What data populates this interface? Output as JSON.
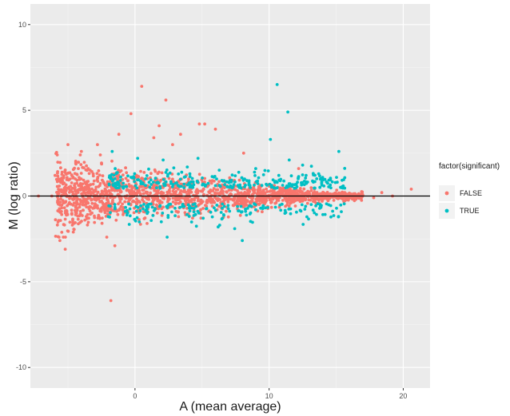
{
  "chart_data": {
    "type": "scatter",
    "title": "",
    "xlabel": "A (mean average)",
    "ylabel": "M (log ratio)",
    "xlim": [
      -7.8,
      22
    ],
    "ylim": [
      -11.2,
      11.2
    ],
    "x_ticks": [
      0,
      10,
      20
    ],
    "y_ticks": [
      -10,
      -5,
      0,
      5,
      10
    ],
    "x_tick_labels": [
      "0",
      "10",
      "20"
    ],
    "y_tick_labels": [
      "-10",
      "-5",
      "0",
      "5",
      "10"
    ],
    "grid": true,
    "hline": 0,
    "legend": {
      "title": "factor(significant)",
      "placement": "right",
      "entries": [
        {
          "label": "FALSE",
          "color": "#F8766D"
        },
        {
          "label": "TRUE",
          "color": "#00BFC4"
        }
      ]
    },
    "series": [
      {
        "name": "FALSE",
        "color": "#F8766D",
        "points": [
          [
            0.5,
            6.4
          ],
          [
            1.4,
            3.4
          ],
          [
            2.3,
            5.6
          ],
          [
            -0.3,
            4.8
          ],
          [
            1.8,
            4.1
          ],
          [
            4.8,
            4.2
          ],
          [
            5.2,
            4.2
          ],
          [
            3.4,
            3.6
          ],
          [
            -1.2,
            3.6
          ],
          [
            6.0,
            3.9
          ],
          [
            -1.8,
            -6.1
          ],
          [
            -1.5,
            -2.9
          ],
          [
            -2.1,
            -2.4
          ],
          [
            -5.2,
            -3.1
          ],
          [
            -5.6,
            -2.6
          ],
          [
            -7.2,
            0.0
          ],
          [
            -6.2,
            0.0
          ],
          [
            -5.5,
            0.0
          ],
          [
            20.6,
            0.4
          ],
          [
            19.2,
            0.0
          ],
          [
            18.4,
            0.2
          ],
          [
            17.8,
            -0.1
          ],
          [
            -5.0,
            3.0
          ],
          [
            -4.0,
            2.6
          ],
          [
            -2.8,
            3.0
          ],
          [
            2.8,
            3.0
          ],
          [
            8.1,
            2.5
          ],
          [
            13.3,
            1.3
          ],
          [
            12.2,
            1.6
          ],
          [
            -4.6,
            -2.1
          ]
        ]
      },
      {
        "name": "TRUE",
        "color": "#00BFC4",
        "points": [
          [
            10.6,
            6.5
          ],
          [
            11.4,
            4.9
          ],
          [
            10.1,
            3.3
          ],
          [
            15.2,
            2.6
          ],
          [
            8.0,
            -2.6
          ],
          [
            2.4,
            -2.4
          ],
          [
            -1.7,
            2.6
          ],
          [
            11.5,
            2.1
          ],
          [
            12.5,
            1.8
          ],
          [
            13.7,
            1.3
          ],
          [
            4.7,
            2.2
          ],
          [
            2.1,
            2.1
          ],
          [
            9.0,
            1.6
          ],
          [
            6.2,
            -1.8
          ],
          [
            0.2,
            2.2
          ]
        ]
      }
    ],
    "dense_cloud": {
      "false_x_range": [
        -5.8,
        17
      ],
      "true_x_range": [
        -2.0,
        15.8
      ],
      "false_n": 1600,
      "true_n": 450
    }
  }
}
